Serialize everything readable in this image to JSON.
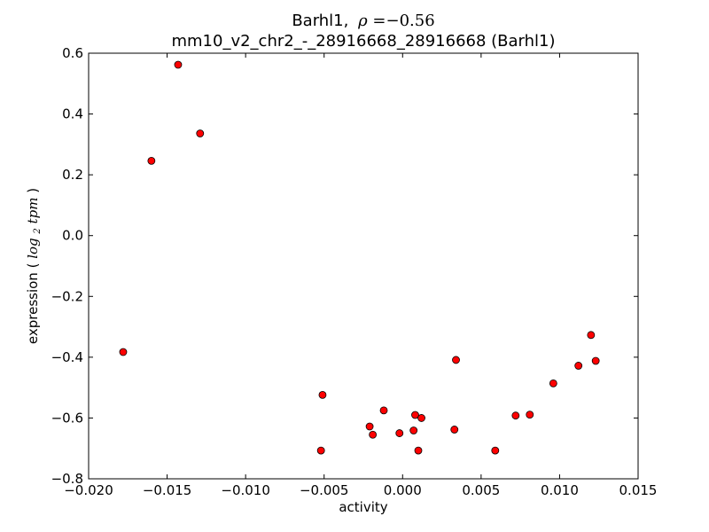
{
  "chart_data": {
    "type": "scatter",
    "title": {
      "gene": "Barhl1,",
      "rho_symbol": "ρ",
      "rho_value": "=−0.56",
      "subtitle": "mm10_v2_chr2_-_28916668_28916668 (Barhl1)"
    },
    "xlabel": "activity",
    "ylabel": {
      "prefix": "expression (",
      "math": "log",
      "math_sub": "2",
      "math_tail": "tpm",
      "suffix": ")"
    },
    "xlim": [
      -0.02,
      0.015
    ],
    "ylim": [
      -0.8,
      0.6
    ],
    "x_ticks": [
      -0.02,
      -0.015,
      -0.01,
      -0.005,
      0.0,
      0.005,
      0.01,
      0.015
    ],
    "x_tick_labels": [
      "−0.020",
      "−0.015",
      "−0.010",
      "−0.005",
      "0.000",
      "0.005",
      "0.010",
      "0.015"
    ],
    "y_ticks": [
      0.6,
      0.4,
      0.2,
      0.0,
      -0.2,
      -0.4,
      -0.6,
      -0.8
    ],
    "y_tick_labels": [
      "0.6",
      "0.4",
      "0.2",
      "0.0",
      "−0.2",
      "−0.4",
      "−0.6",
      "−0.8"
    ],
    "grid": false,
    "marker_color": "#ff0000",
    "marker_edge_color": "#000000",
    "points": [
      {
        "x": -0.0143,
        "y": 0.562
      },
      {
        "x": -0.0129,
        "y": 0.336
      },
      {
        "x": -0.016,
        "y": 0.246
      },
      {
        "x": -0.0178,
        "y": -0.383
      },
      {
        "x": -0.0051,
        "y": -0.524
      },
      {
        "x": -0.0052,
        "y": -0.707
      },
      {
        "x": -0.0012,
        "y": -0.575
      },
      {
        "x": -0.0021,
        "y": -0.628
      },
      {
        "x": -0.0019,
        "y": -0.655
      },
      {
        "x": -0.0002,
        "y": -0.65
      },
      {
        "x": 0.0007,
        "y": -0.641
      },
      {
        "x": 0.0008,
        "y": -0.59
      },
      {
        "x": 0.0012,
        "y": -0.6
      },
      {
        "x": 0.001,
        "y": -0.707
      },
      {
        "x": 0.0034,
        "y": -0.409
      },
      {
        "x": 0.0033,
        "y": -0.638
      },
      {
        "x": 0.0059,
        "y": -0.707
      },
      {
        "x": 0.0072,
        "y": -0.592
      },
      {
        "x": 0.0081,
        "y": -0.589
      },
      {
        "x": 0.0096,
        "y": -0.486
      },
      {
        "x": 0.0112,
        "y": -0.428
      },
      {
        "x": 0.012,
        "y": -0.327
      },
      {
        "x": 0.0123,
        "y": -0.412
      }
    ]
  }
}
